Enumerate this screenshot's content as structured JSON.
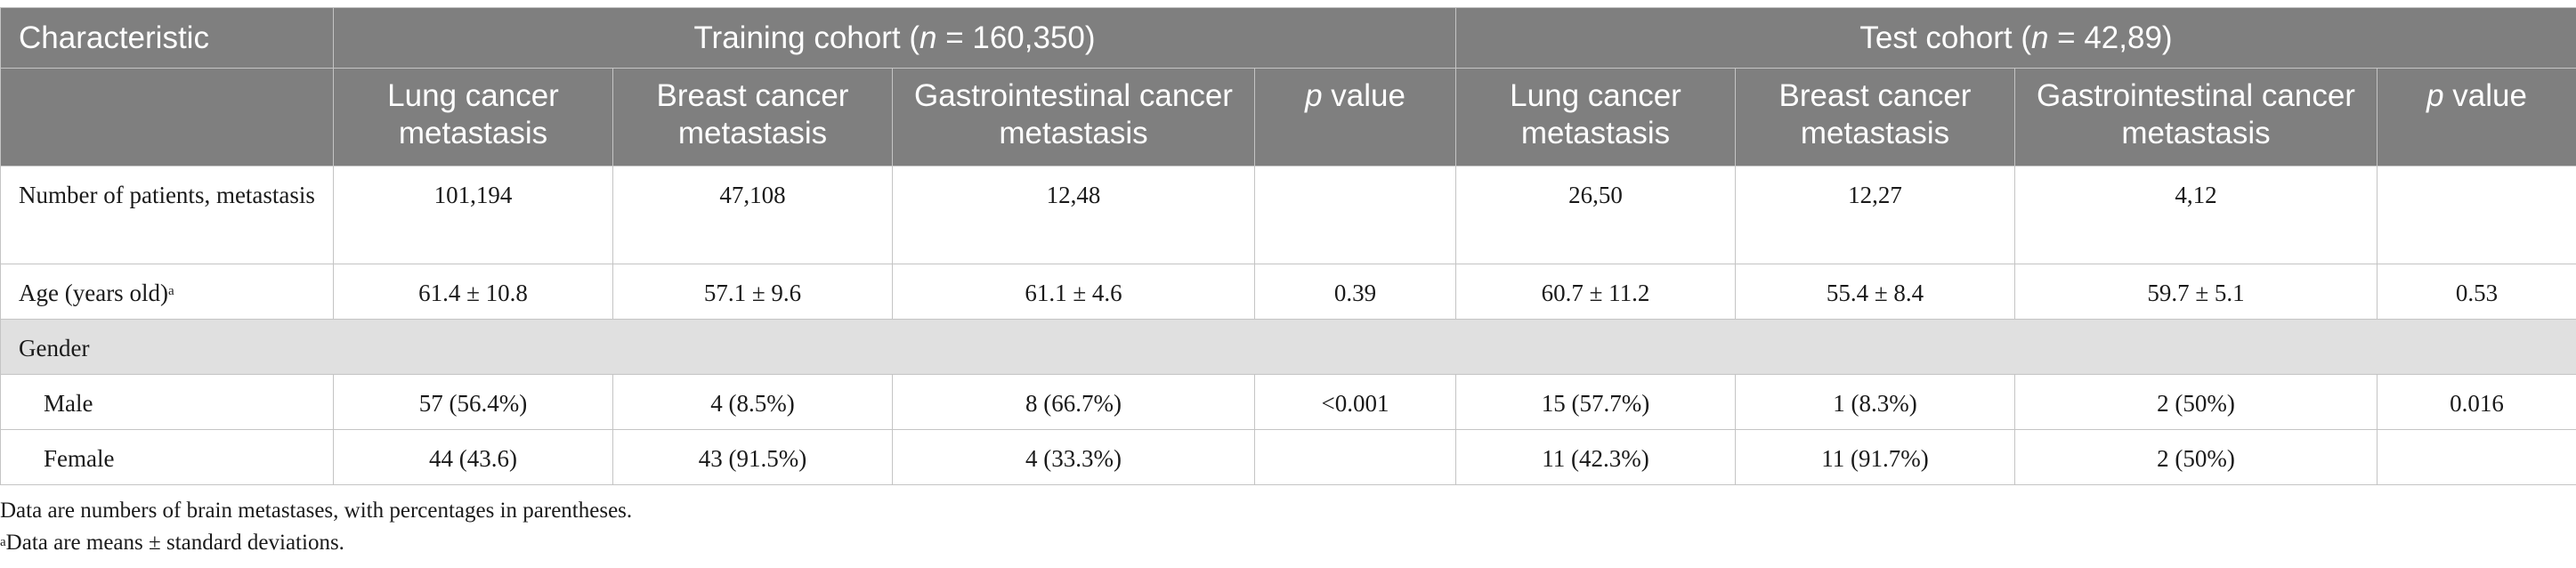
{
  "table": {
    "header_row1": {
      "characteristic": "Characteristic",
      "training_cohort_prefix": "Training cohort (",
      "training_cohort_n": "n",
      "training_cohort_suffix": " = 160,350)",
      "test_cohort_prefix": "Test cohort (",
      "test_cohort_n": "n",
      "test_cohort_suffix": " = 42,89)"
    },
    "header_row2": {
      "train_lung": "Lung cancer metastasis",
      "train_breast": "Breast cancer metastasis",
      "train_gi": "Gastrointestinal cancer metastasis",
      "train_p_italic": "p",
      "train_p_rest": " value",
      "test_lung": "Lung cancer metastasis",
      "test_breast": "Breast cancer metastasis",
      "test_gi": "Gastrointestinal cancer metastasis",
      "test_p_italic": "p",
      "test_p_rest": " value"
    },
    "rows": [
      {
        "label": "Number of patients, metastasis",
        "values": [
          "101,194",
          "47,108",
          "12,48",
          "",
          "26,50",
          "12,27",
          "4,12",
          ""
        ]
      },
      {
        "label": "Age (years old)",
        "label_sup": "a",
        "values": [
          "61.4 ± 10.8",
          "57.1 ± 9.6",
          "61.1 ± 4.6",
          "0.39",
          "60.7 ± 11.2",
          "55.4 ± 8.4",
          "59.7 ± 5.1",
          "0.53"
        ]
      },
      {
        "label": "Gender",
        "section": true
      },
      {
        "label": "Male",
        "values": [
          "57 (56.4%)",
          "4 (8.5%)",
          "8 (66.7%)",
          "<0.001",
          "15 (57.7%)",
          "1 (8.3%)",
          "2 (50%)",
          "0.016"
        ]
      },
      {
        "label": "Female",
        "values": [
          "44 (43.6)",
          "43 (91.5%)",
          "4 (33.3%)",
          "",
          "11 (42.3%)",
          "11 (91.7%)",
          "2 (50%)",
          ""
        ]
      }
    ]
  },
  "footnotes": {
    "line1": "Data are numbers of brain metastases, with percentages in parentheses.",
    "line2_sup": "a",
    "line2": "Data are means ± standard deviations."
  },
  "colors": {
    "header_bg": "#7f7f7f",
    "section_bg": "#e0e0e0",
    "border": "#c4c4c4"
  }
}
